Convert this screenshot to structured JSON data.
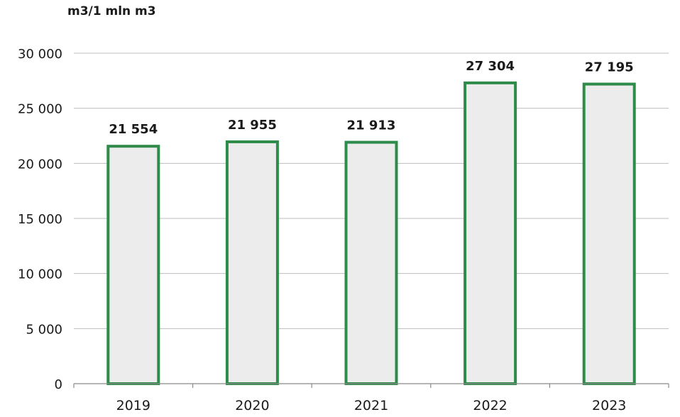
{
  "unit_label": "m3/1 mln m3",
  "colors": {
    "bar_stroke": "#2e8b4a",
    "bar_fill": "#ececec",
    "grid": "#bdbdbd",
    "axis": "#8a8a8a",
    "text": "#1a1a1a"
  },
  "chart_data": {
    "type": "bar",
    "categories": [
      "2019",
      "2020",
      "2021",
      "2022",
      "2023"
    ],
    "values": [
      21554,
      21955,
      21913,
      27304,
      27195
    ],
    "value_labels": [
      "21 554",
      "21 955",
      "21 913",
      "27 304",
      "27 195"
    ],
    "y_ticks": [
      0,
      5000,
      10000,
      15000,
      20000,
      25000,
      30000
    ],
    "y_tick_labels": [
      "0",
      "5 000",
      "10 000",
      "15 000",
      "20 000",
      "25 000",
      "30 000"
    ],
    "ylim": [
      0,
      30000
    ],
    "ylabel": "m3/1 mln m3",
    "grid": true,
    "legend": "none"
  }
}
